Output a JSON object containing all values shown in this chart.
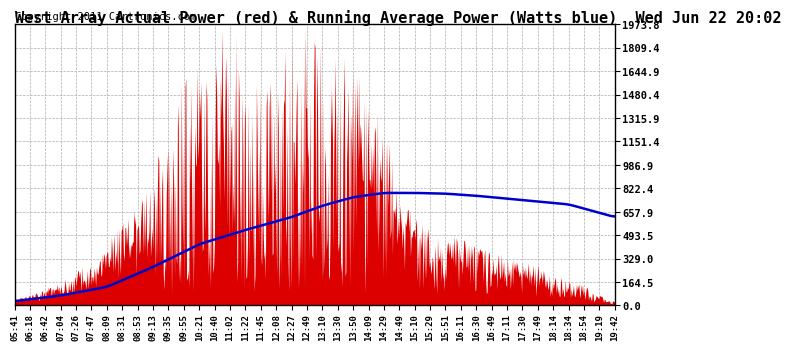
{
  "title": "West Array Actual Power (red) & Running Average Power (Watts blue)  Wed Jun 22 20:02",
  "copyright": "Copyright 2011 Cartronics.com",
  "yticks": [
    0.0,
    164.5,
    329.0,
    493.5,
    657.9,
    822.4,
    986.9,
    1151.4,
    1315.9,
    1480.4,
    1644.9,
    1809.4,
    1973.8
  ],
  "ymax": 1973.8,
  "ymin": 0.0,
  "bar_color": "#dd0000",
  "line_color": "#0000cc",
  "bg_color": "#ffffff",
  "grid_color": "#999999",
  "title_fontsize": 11,
  "copyright_fontsize": 7.5,
  "xtick_labels": [
    "05:41",
    "06:18",
    "06:42",
    "07:04",
    "07:26",
    "07:47",
    "08:09",
    "08:31",
    "08:53",
    "09:13",
    "09:35",
    "09:55",
    "10:21",
    "10:40",
    "11:02",
    "11:22",
    "11:45",
    "12:08",
    "12:27",
    "12:49",
    "13:10",
    "13:30",
    "13:50",
    "14:09",
    "14:29",
    "14:49",
    "15:10",
    "15:29",
    "15:51",
    "16:11",
    "16:30",
    "16:49",
    "17:11",
    "17:30",
    "17:49",
    "18:14",
    "18:34",
    "18:54",
    "19:19",
    "19:42"
  ],
  "blue_line_x": [
    0,
    3,
    6,
    9,
    12,
    15,
    18,
    20,
    22,
    24,
    26,
    28,
    30,
    33,
    36,
    39
  ],
  "blue_line_y": [
    30,
    70,
    130,
    270,
    430,
    530,
    620,
    700,
    760,
    790,
    790,
    785,
    770,
    740,
    710,
    620
  ]
}
